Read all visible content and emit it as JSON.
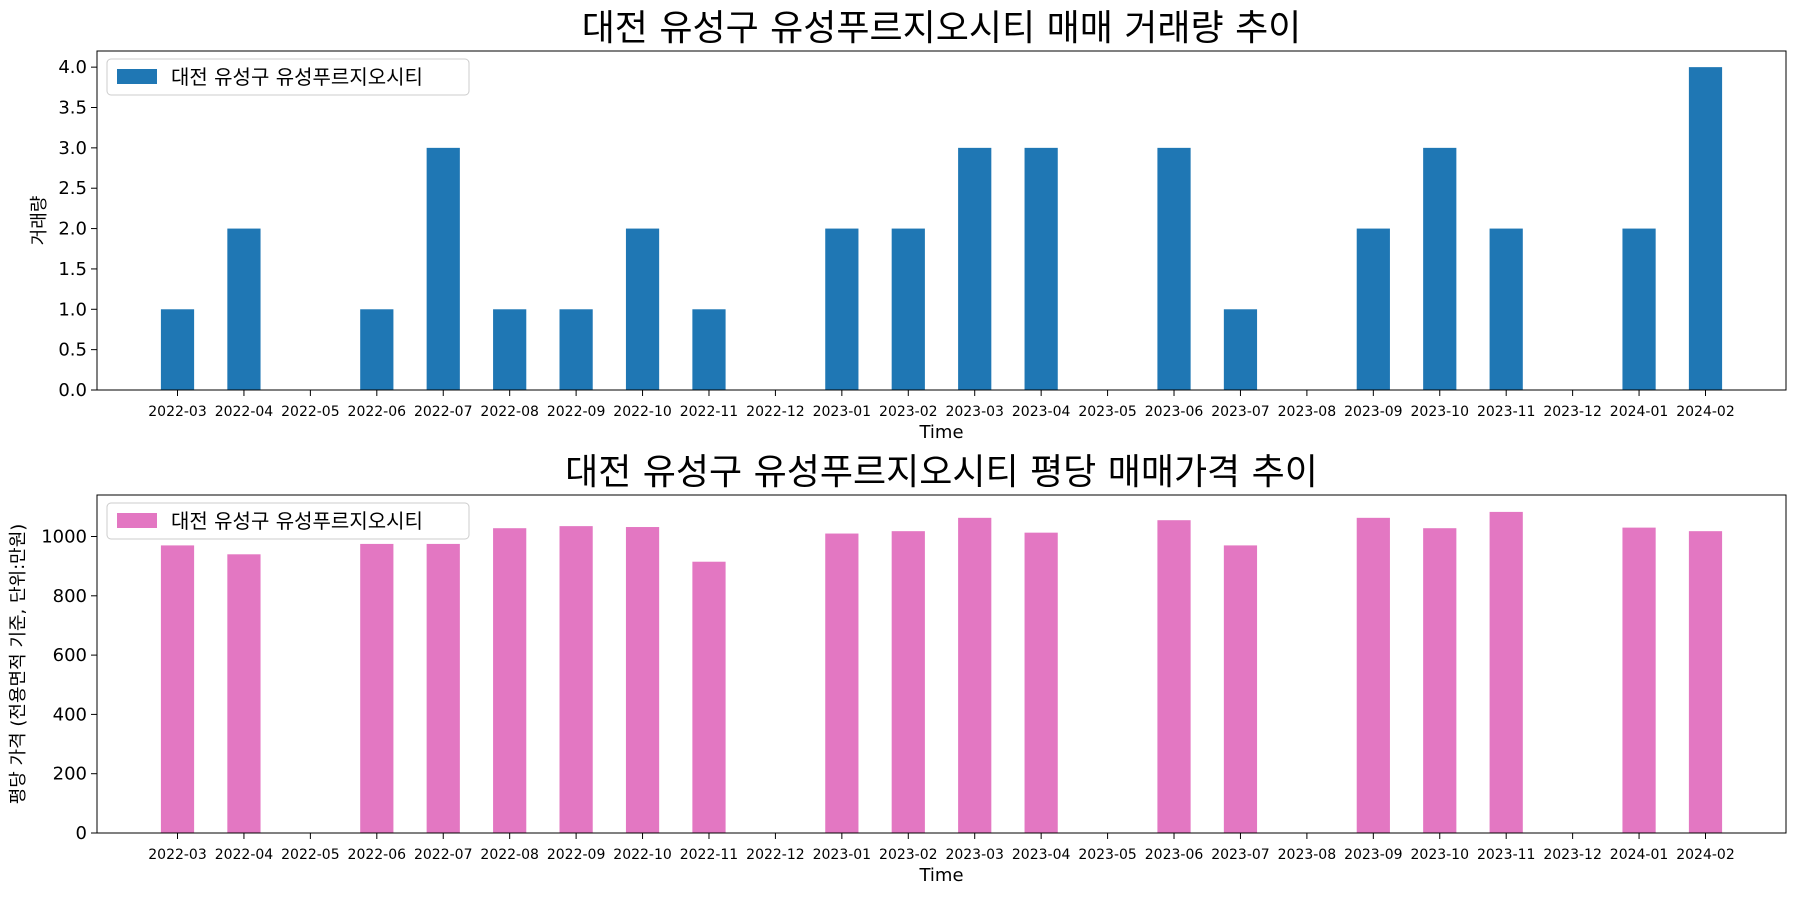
{
  "chart_data": [
    {
      "type": "bar",
      "title": "대전 유성구 유성푸르지오시티 매매 거래량 추이",
      "xlabel": "Time",
      "ylabel": "거래량",
      "ylim": [
        0,
        4.2
      ],
      "yticks": [
        "0.0",
        "0.5",
        "1.0",
        "1.5",
        "2.0",
        "2.5",
        "3.0",
        "3.5",
        "4.0"
      ],
      "ytick_values": [
        0,
        0.5,
        1,
        1.5,
        2,
        2.5,
        3,
        3.5,
        4
      ],
      "grid": false,
      "legend_position": "top-left",
      "categories": [
        "2022-03",
        "2022-04",
        "2022-05",
        "2022-06",
        "2022-07",
        "2022-08",
        "2022-09",
        "2022-10",
        "2022-11",
        "2022-12",
        "2023-01",
        "2023-02",
        "2023-03",
        "2023-04",
        "2023-05",
        "2023-06",
        "2023-07",
        "2023-08",
        "2023-09",
        "2023-10",
        "2023-11",
        "2023-12",
        "2024-01",
        "2024-02"
      ],
      "series": [
        {
          "name": "대전 유성구 유성푸르지오시티",
          "color": "#1f77b4",
          "values": [
            1,
            2,
            0,
            1,
            3,
            1,
            1,
            2,
            1,
            0,
            2,
            2,
            3,
            3,
            0,
            3,
            1,
            0,
            2,
            3,
            2,
            0,
            2,
            4
          ]
        }
      ]
    },
    {
      "type": "bar",
      "title": "대전 유성구 유성푸르지오시티 평당 매매가격 추이",
      "xlabel": "Time",
      "ylabel": "평당 가격 (전용면적 기준, 단위:만원)",
      "ylim": [
        0,
        1140
      ],
      "yticks": [
        "0",
        "200",
        "400",
        "600",
        "800",
        "1000"
      ],
      "ytick_values": [
        0,
        200,
        400,
        600,
        800,
        1000
      ],
      "grid": false,
      "legend_position": "top-left",
      "categories": [
        "2022-03",
        "2022-04",
        "2022-05",
        "2022-06",
        "2022-07",
        "2022-08",
        "2022-09",
        "2022-10",
        "2022-11",
        "2022-12",
        "2023-01",
        "2023-02",
        "2023-03",
        "2023-04",
        "2023-05",
        "2023-06",
        "2023-07",
        "2023-08",
        "2023-09",
        "2023-10",
        "2023-11",
        "2023-12",
        "2024-01",
        "2024-02"
      ],
      "series": [
        {
          "name": "대전 유성구 유성푸르지오시티",
          "color": "#e377c2",
          "values": [
            970,
            940,
            0,
            975,
            975,
            1028,
            1035,
            1032,
            915,
            0,
            1010,
            1018,
            1063,
            1013,
            0,
            1055,
            970,
            0,
            1063,
            1028,
            1083,
            0,
            1030,
            1018
          ]
        }
      ]
    }
  ]
}
